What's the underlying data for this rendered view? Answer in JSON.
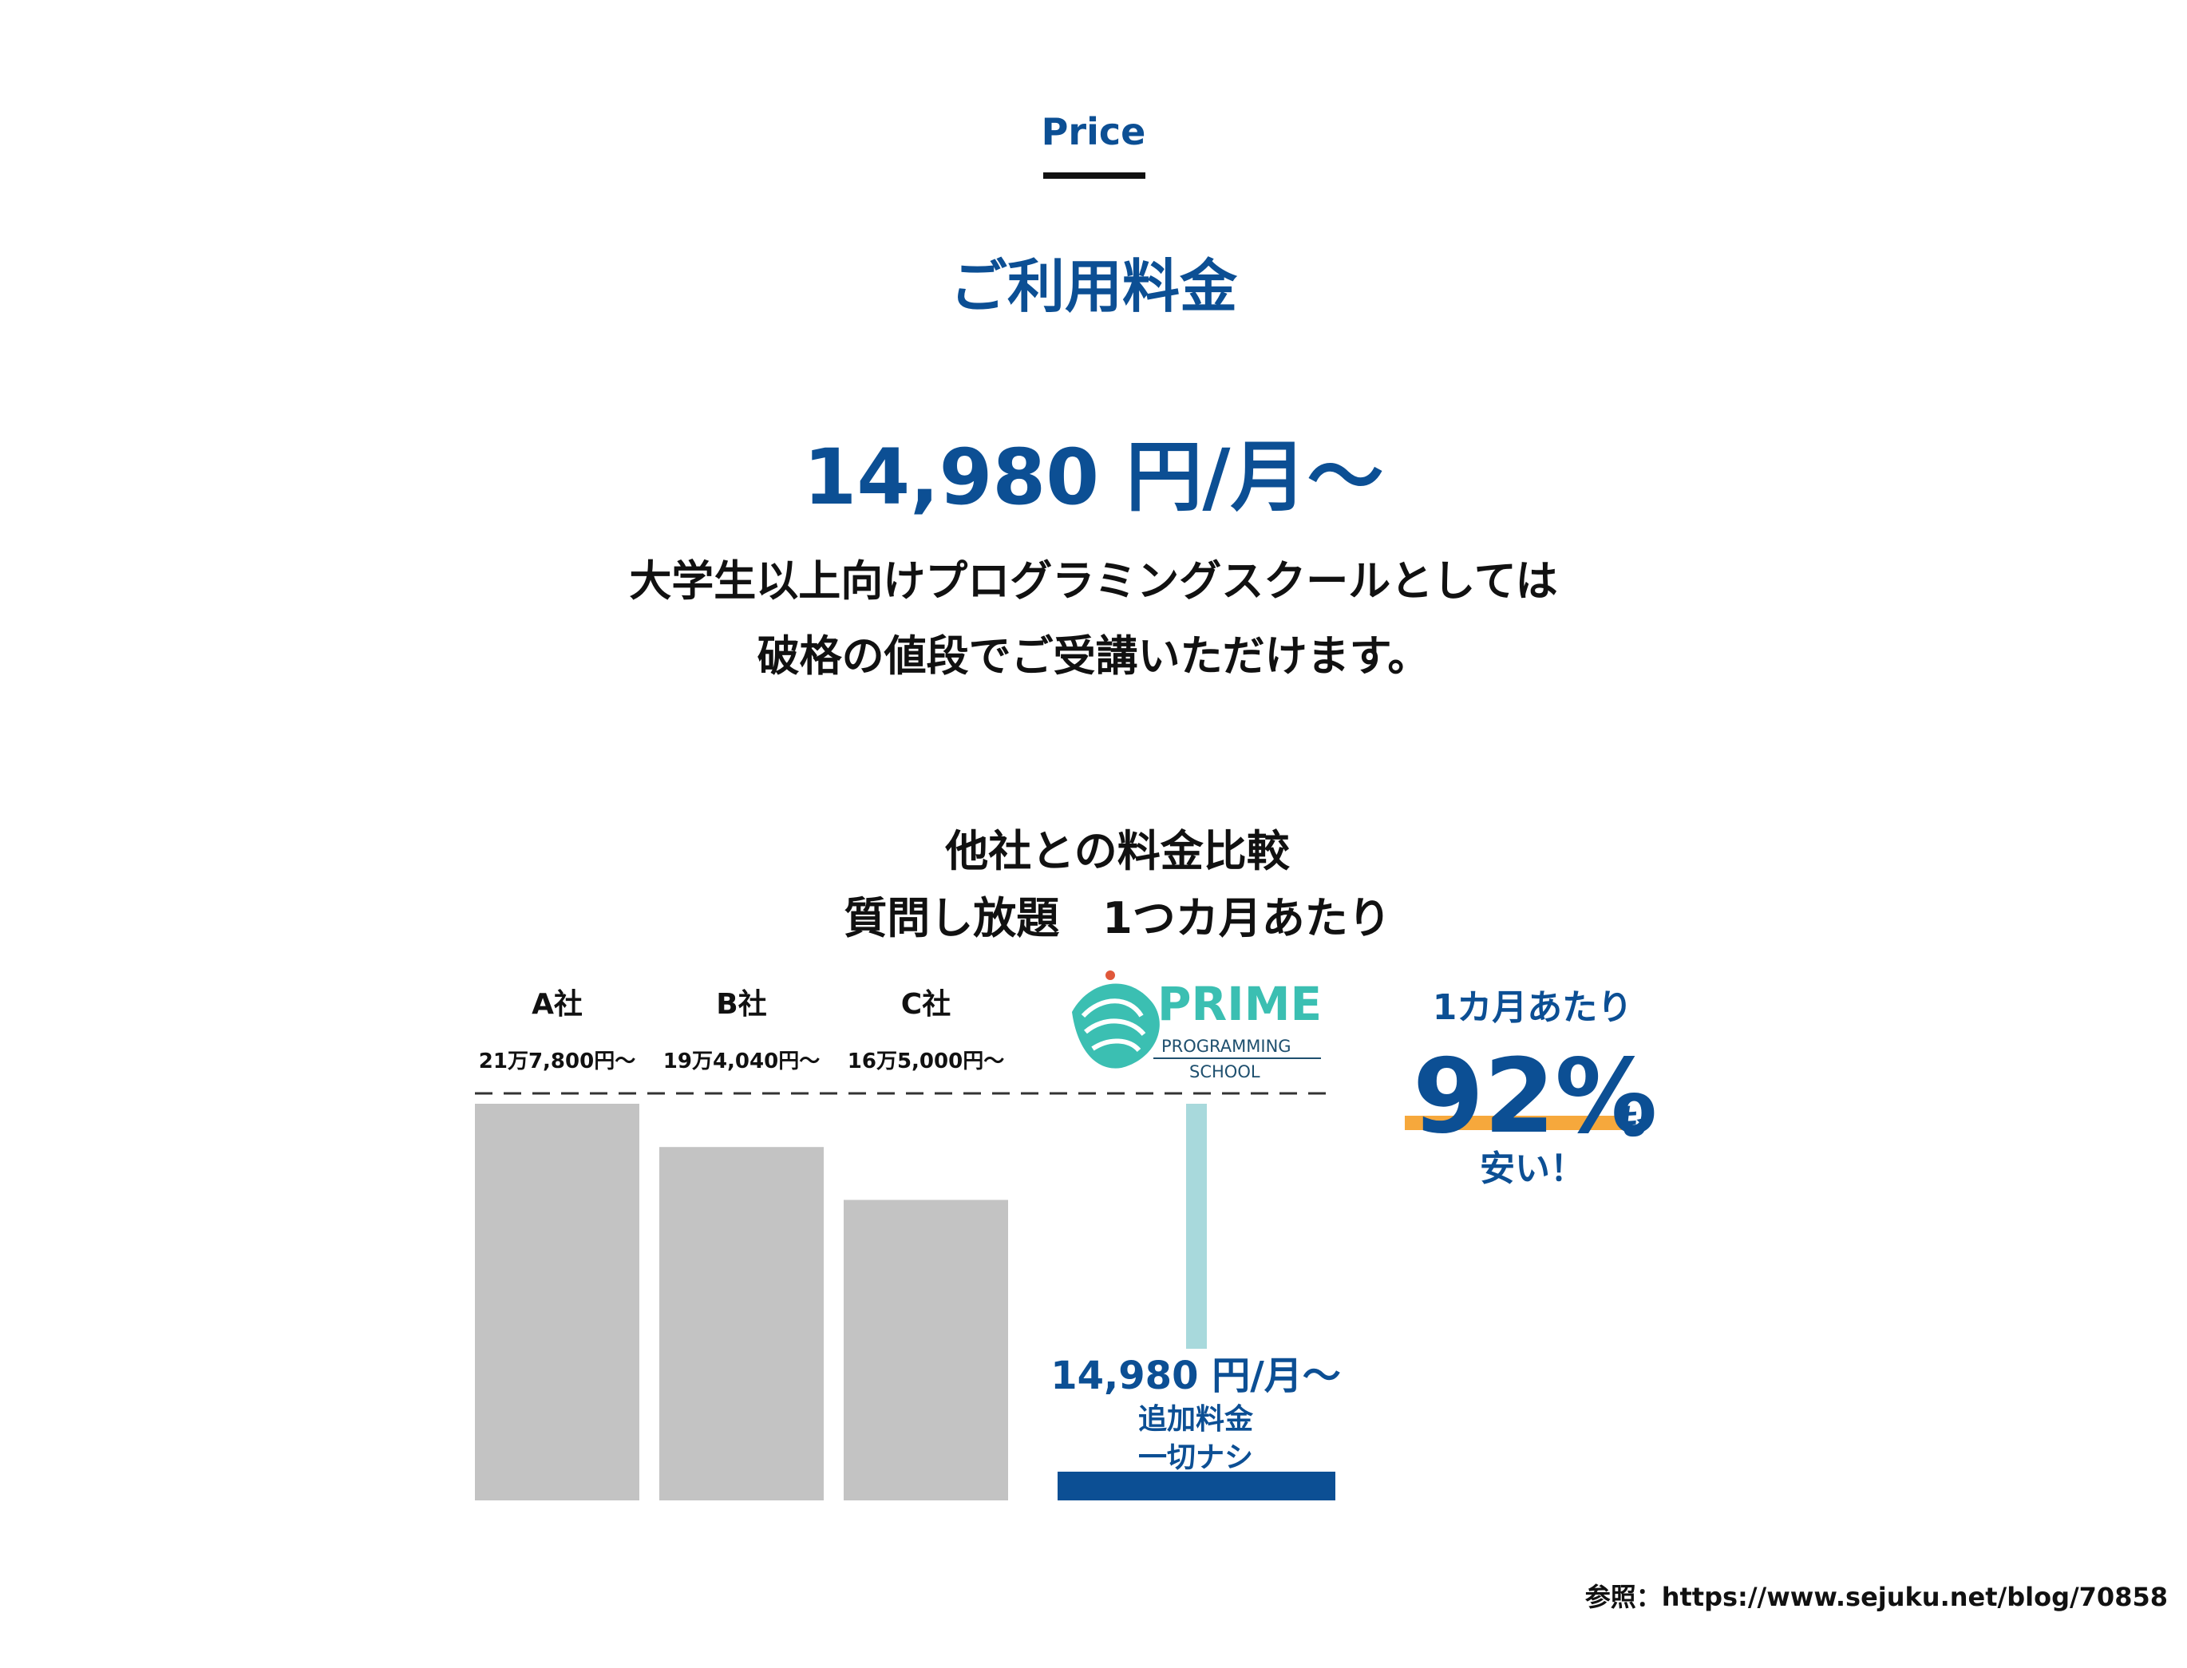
{
  "header": {
    "eyebrow": "Price",
    "title": "ご利用料金",
    "price": "14,980 円/月〜",
    "description_line1": "大学生以上向けプログラミングスクールとしては",
    "description_line2": "破格の値段でご受講いただけます。"
  },
  "chart_data": {
    "type": "bar",
    "title": "他社との料金比較",
    "subtitle": "質問し放題　1つカ月あたり",
    "categories": [
      "A社",
      "B社",
      "C社",
      "PRIME PROGRAMMING SCHOOL"
    ],
    "values": [
      217800,
      194040,
      165000,
      14980
    ],
    "value_labels": [
      "21万7,800円〜",
      "19万4,040円〜",
      "16万5,000円〜",
      "14,980 円/月〜"
    ],
    "highlight_category": "PRIME PROGRAMMING SCHOOL",
    "highlight_annotation": [
      "追加料金",
      "一切ナシ"
    ],
    "ylim": [
      0,
      217800
    ],
    "grid": false,
    "colors": {
      "competitor": "#c3c3c3",
      "highlight": "#0c4f94",
      "highlight_stem": "#a8d9dc",
      "reference_line": "#333333"
    }
  },
  "logo": {
    "text_main": "PRIME",
    "text_sub1": "PROGRAMMING",
    "text_sub2": "SCHOOL",
    "colors": {
      "teal": "#3bbfb2",
      "dark": "#1e4f6e",
      "accent": "#e0583a"
    }
  },
  "note": {
    "per_month": "1カ月あたり",
    "discount": "92%",
    "discount_suffix": "も",
    "cheaper": "安い！",
    "highlight_color": "#f6a83c"
  },
  "footer": {
    "source": "参照：https://www.sejuku.net/blog/70858"
  }
}
